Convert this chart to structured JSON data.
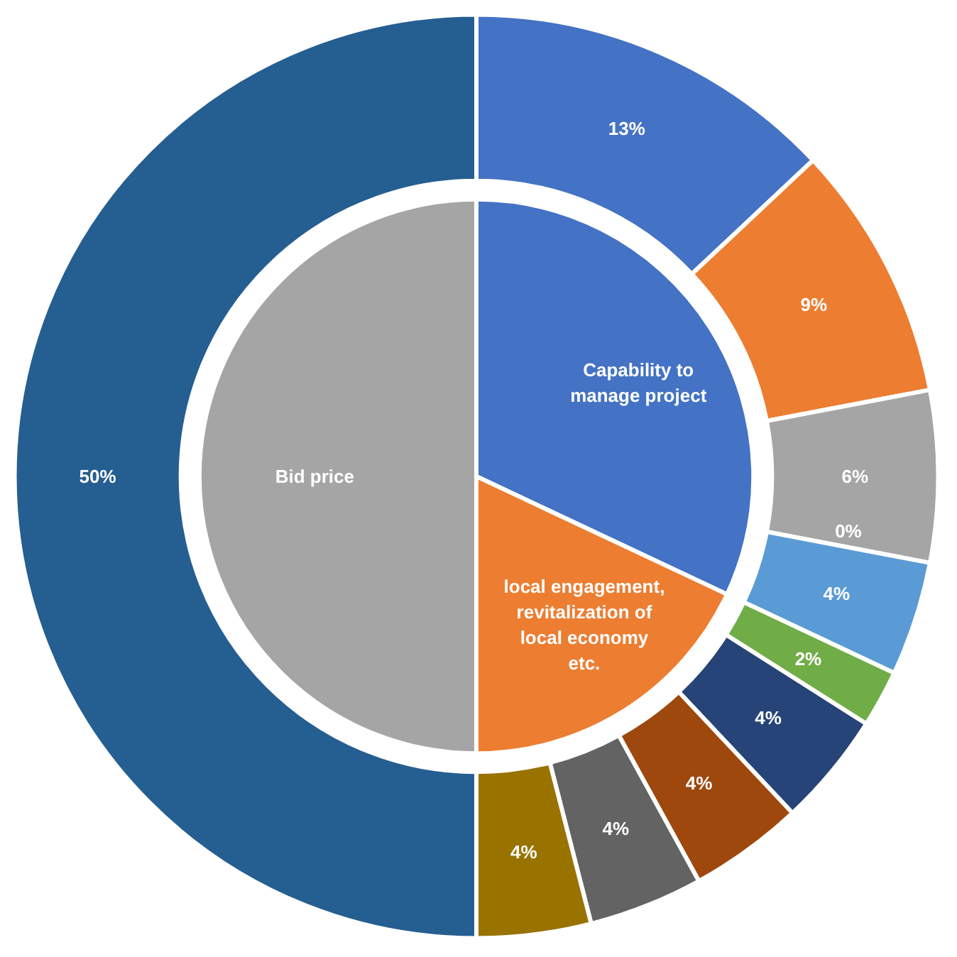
{
  "chart_data": {
    "type": "donut",
    "categories": [
      "Capability to manage project",
      "local engagement, revitalization of local economy etc.",
      "Bid price"
    ],
    "series": [
      {
        "values": [
          32,
          18,
          50
        ],
        "colors": [
          "#4472c4",
          "#ed7d31",
          "#a5a5a5"
        ]
      },
      {
        "x": [
          null,
          null,
          null,
          null,
          null,
          null,
          null,
          null,
          null,
          null,
          null
        ],
        "values": [
          13,
          9,
          6,
          0,
          4,
          2,
          4,
          4,
          4,
          4,
          50
        ],
        "colors": [
          "#4472c4",
          "#ed7d31",
          "#a5a5a5",
          "#ffc000",
          "#5b9bd5",
          "#70ad47",
          "#264478",
          "#9e480e",
          "#636363",
          "#997300",
          "#255e91"
        ],
        "value_labels": [
          "13%",
          "9%",
          "6%",
          "0%",
          "4%",
          "2%",
          "4%",
          "4%",
          "4%",
          "4%",
          "50%"
        ]
      }
    ]
  }
}
